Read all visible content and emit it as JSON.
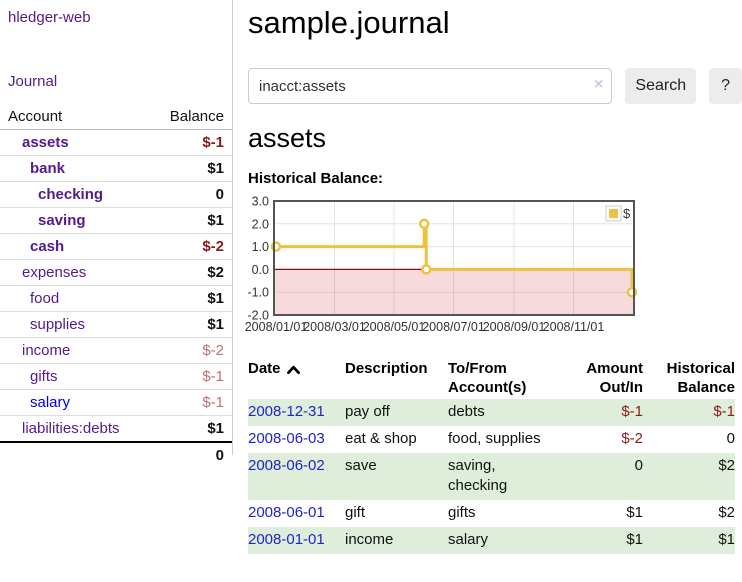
{
  "brand": {
    "label": "hledger-web"
  },
  "nav": {
    "journal": "Journal"
  },
  "sidebar": {
    "headers": {
      "account": "Account",
      "balance": "Balance"
    },
    "accounts": [
      {
        "name": "assets",
        "balance": "$-1",
        "depth": 1,
        "matched": true,
        "value_style": "neg-strong"
      },
      {
        "name": "bank",
        "balance": "$1",
        "depth": 2,
        "matched": true,
        "value_style": "pos"
      },
      {
        "name": "checking",
        "balance": "0",
        "depth": 3,
        "matched": true,
        "value_style": "pos"
      },
      {
        "name": "saving",
        "balance": "$1",
        "depth": 3,
        "matched": true,
        "value_style": "pos"
      },
      {
        "name": "cash",
        "balance": "$-2",
        "depth": 2,
        "matched": true,
        "value_style": "neg-strong"
      },
      {
        "name": "expenses",
        "balance": "$2",
        "depth": 1,
        "matched": false,
        "value_style": "pos"
      },
      {
        "name": "food",
        "balance": "$1",
        "depth": 2,
        "matched": false,
        "value_style": "pos"
      },
      {
        "name": "supplies",
        "balance": "$1",
        "depth": 2,
        "matched": false,
        "value_style": "pos"
      },
      {
        "name": "income",
        "balance": "$-2",
        "depth": 1,
        "matched": false,
        "value_style": "neg-soft"
      },
      {
        "name": "gifts",
        "balance": "$-1",
        "depth": 2,
        "matched": false,
        "value_style": "neg-soft"
      },
      {
        "name": "salary",
        "balance": "$-1",
        "depth": 2,
        "matched": false,
        "value_style": "neg-soft",
        "unvisited": true
      },
      {
        "name": "liabilities:debts",
        "balance": "$1",
        "depth": 1,
        "matched": false,
        "value_style": "pos"
      }
    ],
    "total": "0"
  },
  "main": {
    "title": "sample.journal",
    "search": {
      "value": "inacct:assets",
      "clear": "×",
      "button": "Search",
      "help": "?"
    },
    "account_heading": "assets",
    "chart_heading": "Historical Balance:"
  },
  "chart_data": {
    "type": "line",
    "step": true,
    "title": "Historical Balance",
    "series": [
      {
        "name": "$",
        "color": "#edc240",
        "points": [
          [
            "2008-01-01",
            1
          ],
          [
            "2008-06-01",
            2
          ],
          [
            "2008-06-03",
            0
          ],
          [
            "2008-12-31",
            -1
          ]
        ]
      }
    ],
    "x_ticks": [
      "2008/01/01",
      "2008/03/01",
      "2008/05/01",
      "2008/07/01",
      "2008/09/01",
      "2008/11/01"
    ],
    "y_ticks": [
      "3.0",
      "2.0",
      "1.0",
      "0.0",
      "-1.0",
      "-2.0"
    ],
    "ylim": [
      -2,
      3
    ],
    "grid": true,
    "legend_position": "top-right",
    "negative_region": {
      "from": 0,
      "to": -2,
      "color": "#f7dadc",
      "zero_line_color": "#871010"
    },
    "border_color": "#545454",
    "grid_color": "rgba(84,84,84,0.16)"
  },
  "register": {
    "headers": {
      "date": "Date",
      "description": "Description",
      "account": "To/From Account(s)",
      "amount": "Amount Out/In",
      "balance": "Historical Balance"
    },
    "rows": [
      {
        "date": "2008-12-31",
        "description": "pay off",
        "accounts": "debts",
        "amount": "$-1",
        "amount_neg": true,
        "balance": "$-1",
        "balance_neg": true
      },
      {
        "date": "2008-06-03",
        "description": "eat & shop",
        "accounts": "food, supplies",
        "amount": "$-2",
        "amount_neg": true,
        "balance": "0",
        "balance_neg": false
      },
      {
        "date": "2008-06-02",
        "description": "save",
        "accounts": "saving, checking",
        "amount": "0",
        "amount_neg": false,
        "balance": "$2",
        "balance_neg": false
      },
      {
        "date": "2008-06-01",
        "description": "gift",
        "accounts": "gifts",
        "amount": "$1",
        "amount_neg": false,
        "balance": "$2",
        "balance_neg": false
      },
      {
        "date": "2008-01-01",
        "description": "income",
        "accounts": "salary",
        "amount": "$1",
        "amount_neg": false,
        "balance": "$1",
        "balance_neg": false
      }
    ]
  }
}
